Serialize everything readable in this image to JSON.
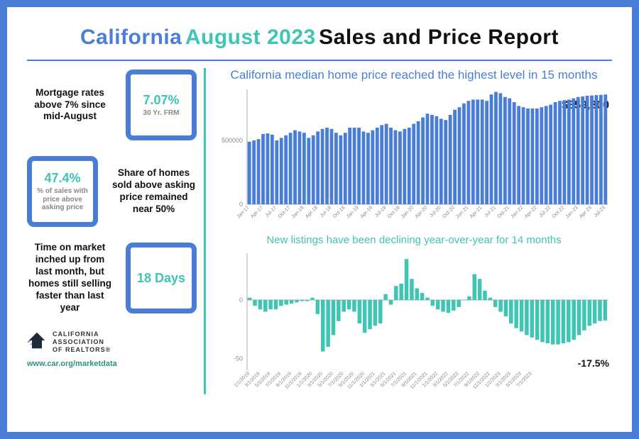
{
  "title": {
    "w1": "California",
    "w2": "August 2023",
    "w3": "Sales and Price Report"
  },
  "stats": [
    {
      "text": "Mortgage rates above 7% since mid-August",
      "box_value": "7.07%",
      "box_sub": "30 Yr. FRM",
      "box_side": "right"
    },
    {
      "text": "Share of homes sold above asking price remained near 50%",
      "box_value": "47.4%",
      "box_sub": "% of sales with price above asking price",
      "box_side": "left"
    },
    {
      "text": "Time on market inched up from last month, but homes still selling faster than last year",
      "box_value": "18 Days",
      "box_sub": "",
      "box_side": "right"
    }
  ],
  "chart1": {
    "type": "bar",
    "title": "California median home price reached the highest level in 15 months",
    "title_color": "#4a7ed6",
    "bar_color": "#4a7ed6",
    "background": "#ffffff",
    "axis_color": "#aaaaaa",
    "label_color": "#888888",
    "ylim": [
      0,
      900000
    ],
    "yticks": [
      0,
      500000
    ],
    "xlabels": [
      "Jan-17",
      "Apr-17",
      "Jul-17",
      "Oct-17",
      "Jan-18",
      "Apr-18",
      "Jul-18",
      "Oct-18",
      "Jan-19",
      "Apr-19",
      "Jul-19",
      "Oct-19",
      "Jan-20",
      "Apr-20",
      "Jul-20",
      "Oct-20",
      "Jan-21",
      "Apr-21",
      "Jul-21",
      "Oct-21",
      "Jan-22",
      "Apr-22",
      "Jul-22",
      "Oct-22",
      "Jan-23",
      "Apr-23",
      "Jul-23"
    ],
    "xlabel_step": 3,
    "values": [
      490000,
      500000,
      510000,
      550000,
      555000,
      545000,
      500000,
      520000,
      540000,
      560000,
      580000,
      570000,
      560000,
      520000,
      540000,
      570000,
      590000,
      600000,
      590000,
      560000,
      540000,
      560000,
      600000,
      600000,
      600000,
      570000,
      560000,
      580000,
      600000,
      620000,
      630000,
      600000,
      580000,
      570000,
      590000,
      600000,
      630000,
      650000,
      680000,
      710000,
      700000,
      690000,
      670000,
      660000,
      700000,
      740000,
      760000,
      790000,
      810000,
      820000,
      820000,
      820000,
      810000,
      860000,
      880000,
      870000,
      840000,
      830000,
      800000,
      770000,
      760000,
      750000,
      750000,
      750000,
      760000,
      770000,
      780000,
      800000,
      810000,
      815000,
      820000,
      830000,
      840000,
      845000,
      850000,
      852000,
      855000,
      857000,
      859800
    ],
    "callout": "$859,800",
    "callout_color": "#111111",
    "label_fontsize": 7,
    "tick_fontsize": 9,
    "bar_gap_ratio": 0.25
  },
  "chart2": {
    "type": "bar-diverging",
    "title": "New listings have been declining year-over-year for 14 months",
    "title_color": "#3fc5b4",
    "bar_color": "#3fc5b4",
    "background": "#ffffff",
    "axis_color": "#aaaaaa",
    "label_color": "#888888",
    "ylim": [
      -60,
      40
    ],
    "yticks": [
      -50,
      0
    ],
    "xlabels": [
      "1/1/2019",
      "3/1/2019",
      "5/1/2019",
      "7/1/2019",
      "9/1/2019",
      "11/1/2019",
      "1/1/2020",
      "3/1/2020",
      "5/1/2020",
      "7/1/2020",
      "9/1/2020",
      "11/1/2020",
      "1/1/2021",
      "3/1/2021",
      "5/1/2021",
      "7/1/2021",
      "9/1/2021",
      "11/1/2021",
      "1/1/2022",
      "3/1/2022",
      "5/1/2022",
      "7/1/2022",
      "9/1/2022",
      "11/1/2022",
      "1/1/2023",
      "3/1/2023",
      "5/1/2023",
      "7/1/2023"
    ],
    "xlabel_step": 2,
    "values": [
      2,
      -5,
      -8,
      -10,
      -8,
      -8,
      -5,
      -4,
      -3,
      -2,
      -1,
      -1,
      2,
      -12,
      -44,
      -40,
      -30,
      -18,
      -10,
      -8,
      -10,
      -20,
      -28,
      -25,
      -22,
      -20,
      5,
      -4,
      12,
      14,
      35,
      18,
      10,
      6,
      2,
      -5,
      -8,
      -10,
      -11,
      -9,
      -6,
      0,
      3,
      22,
      18,
      8,
      2,
      -6,
      -10,
      -14,
      -20,
      -24,
      -27,
      -30,
      -32,
      -34,
      -36,
      -37,
      -38,
      -38,
      -37,
      -36,
      -34,
      -30,
      -26,
      -22,
      -20,
      -18,
      -17.5
    ],
    "callout": "-17.5%",
    "callout_color": "#111111",
    "label_fontsize": 7,
    "tick_fontsize": 9,
    "bar_gap_ratio": 0.25
  },
  "footer": {
    "org_line1": "CALIFORNIA",
    "org_line2": "ASSOCIATION",
    "org_line3": "OF REALTORS®",
    "url": "www.car.org/marketdata",
    "url_color": "#2f8f83"
  },
  "colors": {
    "frame": "#4a7ed6",
    "teal": "#3fc5b4",
    "blue": "#4a7ed6",
    "black": "#111111"
  }
}
